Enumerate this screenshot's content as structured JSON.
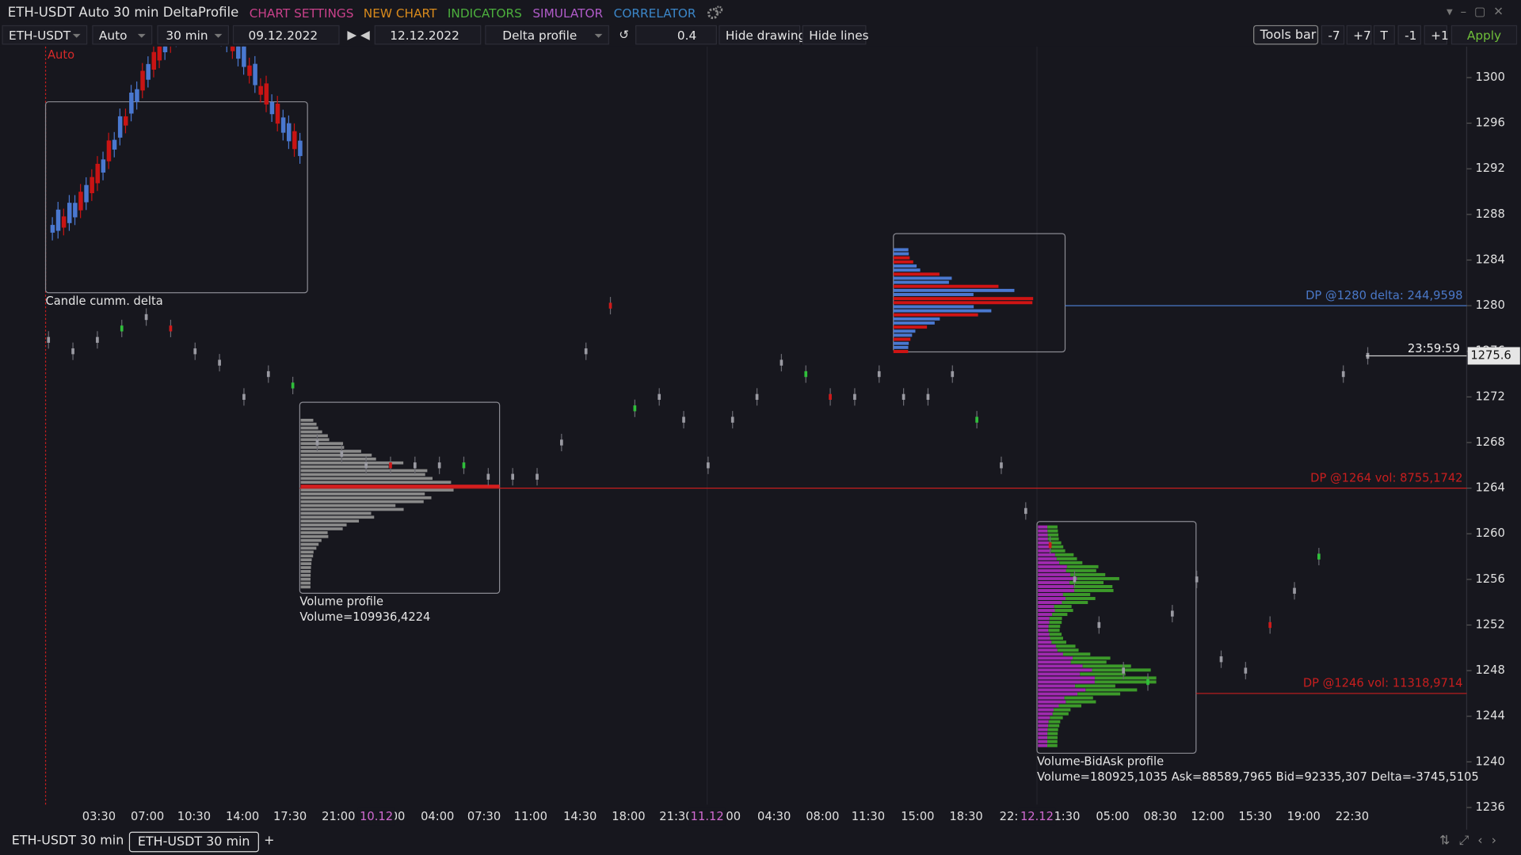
{
  "window": {
    "title": "ETH-USDT Auto 30 min DeltaProfile",
    "menus": [
      "CHART SETTINGS",
      "NEW CHART",
      "INDICATORS",
      "SIMULATOR",
      "CORRELATOR"
    ]
  },
  "toolbar": {
    "symbol": "ETH-USDT",
    "scale": "Auto",
    "timeframe": "30 min",
    "date_from": "09.12.2022",
    "date_to": "12.12.2022",
    "mode": "Delta profile",
    "step": 0.4,
    "buttons": [
      "Hide drawing",
      "Hide lines"
    ],
    "right_buttons": [
      "Tools bar",
      "-7",
      "+7",
      "T",
      "-1",
      "+1"
    ],
    "apply": "Apply"
  },
  "chart": {
    "auto_label": "Auto",
    "ylim": [
      1236,
      1300
    ],
    "yticks": [
      1300,
      1296,
      1292,
      1288,
      1284,
      1280,
      1276,
      1272,
      1268,
      1264,
      1260,
      1256,
      1252,
      1248,
      1244,
      1240,
      1236
    ],
    "time_labels": [
      "03:30",
      "07:00",
      "10:30",
      "14:00",
      "17:30",
      "21:00",
      "00",
      "04:00",
      "07:30",
      "11:00",
      "14:30",
      "18:00",
      "21:30",
      "00",
      "04:30",
      "08:00",
      "11:30",
      "15:00",
      "18:30",
      "22:",
      "1:30",
      "05:00",
      "08:30",
      "12:00",
      "15:30",
      "19:00",
      "22:30"
    ],
    "date_labels": [
      "10.12",
      "11.12",
      "12.12"
    ],
    "price_path": [
      1277,
      1276,
      1277,
      1278,
      1279,
      1278,
      1276,
      1275,
      1272,
      1274,
      1273,
      1268,
      1267,
      1266,
      1266,
      1266,
      1266,
      1266,
      1265,
      1265,
      1265,
      1268,
      1276,
      1280,
      1271,
      1272,
      1270,
      1266,
      1270,
      1272,
      1275,
      1274,
      1272,
      1272,
      1274,
      1272,
      1272,
      1274,
      1270,
      1266,
      1262,
      1259,
      1256,
      1252,
      1248,
      1247,
      1253,
      1256,
      1249,
      1248,
      1252,
      1255,
      1258,
      1274,
      1275.6
    ],
    "levels": [
      {
        "price": 1280,
        "label": "DP @1280 delta: 244,9598",
        "color": "#4a78c8"
      },
      {
        "price": 1264,
        "label": "DP @1264 vol: 8755,1742",
        "color": "#c81e1e"
      },
      {
        "price": 1246,
        "label": "DP @1246 vol: 11318,9714",
        "color": "#c81e1e"
      }
    ],
    "current": {
      "price": 1275.6,
      "timer": "23:59:59"
    },
    "boxes": {
      "candle_delta": {
        "label": "Candle cumm. delta"
      },
      "volume_profile": {
        "label": "Volume profile",
        "stats": "Volume=109936,4224"
      },
      "bidask": {
        "label": "Volume-BidAsk profile",
        "stats": "Volume=180925,1035  Ask=88589,7965  Bid=92335,307  Delta=-3745,5105"
      }
    }
  },
  "tabs": [
    "ETH-USDT 30 min",
    "ETH-USDT 30 min",
    "+"
  ]
}
